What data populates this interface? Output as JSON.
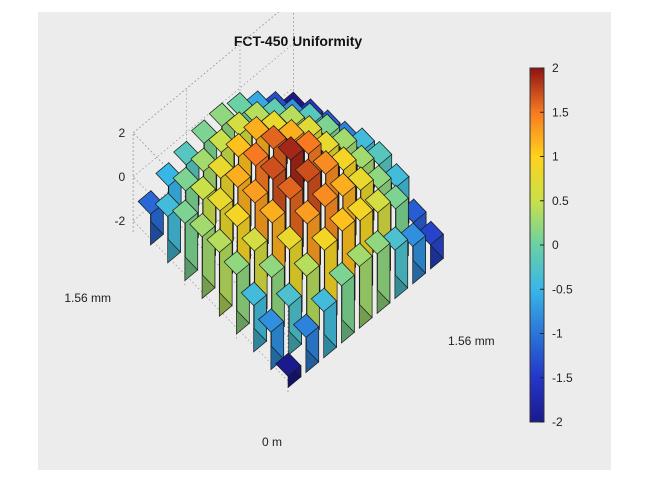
{
  "chart_data": {
    "type": "bar3d",
    "title": "FCT-450 Uniformity",
    "x_axis_labels": [
      "0 m",
      "1.56 mm"
    ],
    "y_axis_label": "1.56 mm",
    "z_ticks": [
      -2,
      0,
      2
    ],
    "zlim": [
      -2.5,
      2
    ],
    "colorbar": {
      "ticks": [
        2,
        1.5,
        1,
        0.5,
        0,
        -0.5,
        -1,
        -1.5,
        -2
      ],
      "labels": [
        "2",
        "1.5",
        "1",
        "0.5",
        "0",
        "-0.5",
        "-1",
        "-1.5",
        "-2"
      ],
      "range": [
        -2,
        2
      ],
      "colormap": "jet"
    },
    "grid": true,
    "grid_size": [
      9,
      9
    ],
    "values": [
      [
        -2,
        -0.9,
        -0.4,
        0.1,
        0.3,
        0.2,
        -0.3,
        -0.8,
        -1.4
      ],
      [
        -0.8,
        -0.3,
        0.4,
        0.9,
        1.1,
        0.9,
        0.6,
        0.1,
        -1.2
      ],
      [
        -0.4,
        0.2,
        0.8,
        1.3,
        1.4,
        1.2,
        0.8,
        0.2,
        -0.4
      ],
      [
        0.2,
        0.6,
        1.2,
        1.6,
        1.7,
        1.4,
        0.9,
        0.3,
        -0.2
      ],
      [
        0.4,
        0.9,
        1.3,
        1.7,
        1.9,
        1.5,
        0.8,
        0.3,
        -0.4
      ],
      [
        0.3,
        0.8,
        1.2,
        1.5,
        1.6,
        1.2,
        0.7,
        0.1,
        -0.9
      ],
      [
        0.1,
        0.5,
        0.8,
        1.1,
        1.2,
        0.8,
        0.4,
        -0.2,
        -1.2
      ],
      [
        -0.4,
        0.1,
        0.3,
        0.5,
        0.6,
        0.4,
        -0.1,
        -0.8,
        -1.5
      ],
      [
        -1.1,
        -0.5,
        -0.2,
        0.1,
        0.2,
        0,
        -0.6,
        -1.3,
        -2
      ]
    ]
  }
}
